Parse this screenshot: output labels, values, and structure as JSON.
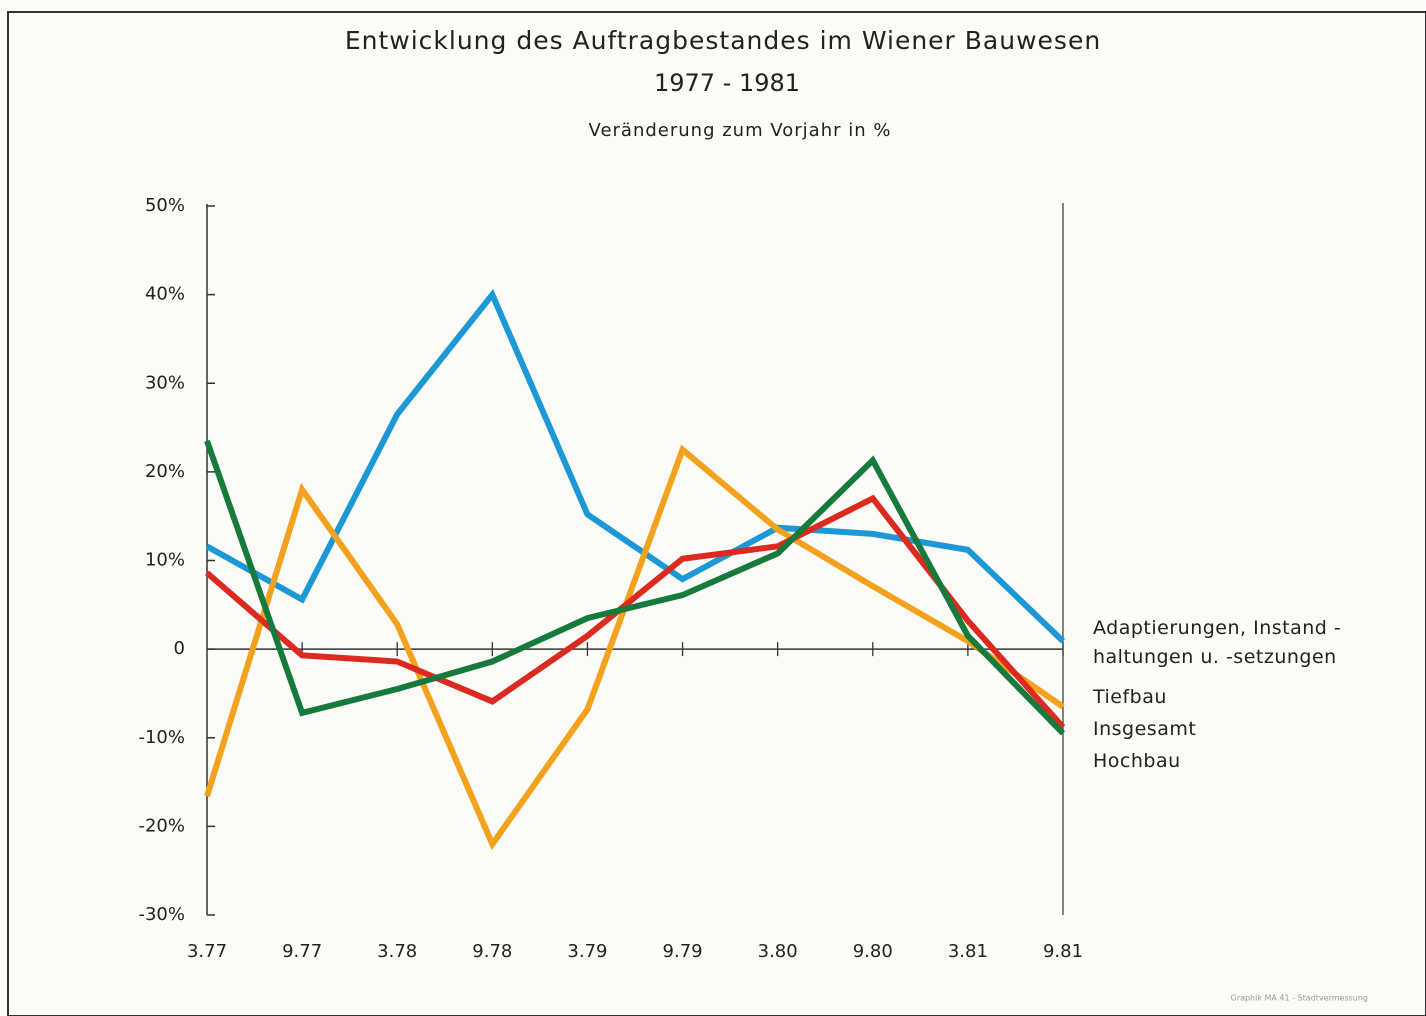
{
  "chart_data": {
    "type": "line",
    "title": "Entwicklung des Auftragbestandes im Wiener Bauwesen",
    "subtitle": "1977 - 1981",
    "y_label": "Veränderung zum Vorjahr in %",
    "credit": "Graphik MA 41 - Stadtvermessung",
    "categories": [
      "3.77",
      "9.77",
      "3.78",
      "9.78",
      "3.79",
      "9.79",
      "3.80",
      "9.80",
      "3.81",
      "9.81"
    ],
    "series": [
      {
        "name": "Adaptierungen, Instand - haltungen u. -setzungen",
        "color": "#1b98d5",
        "values": [
          11.6,
          5.6,
          26.5,
          40,
          15.2,
          7.9,
          13.7,
          13,
          11.2,
          0.9
        ]
      },
      {
        "name": "Tiefbau",
        "color": "#f4a11e",
        "values": [
          -16.6,
          18,
          2.8,
          -22,
          -6.8,
          22.5,
          13.5,
          7.1,
          0.9,
          -6.5
        ]
      },
      {
        "name": "Insgesamt",
        "color": "#dd2a20",
        "values": [
          8.6,
          -0.7,
          -1.4,
          -5.9,
          1.5,
          10.2,
          11.6,
          17,
          3.2,
          -8.8
        ]
      },
      {
        "name": "Hochbau",
        "color": "#167a3c",
        "values": [
          23.5,
          -7.2,
          -4.5,
          -1.4,
          3.5,
          6.1,
          10.8,
          21.3,
          1.5,
          -9.5
        ]
      }
    ],
    "ylim": [
      -30,
      50
    ],
    "yticks": [
      {
        "value": -30,
        "label": "-30%"
      },
      {
        "value": -20,
        "label": "-20%"
      },
      {
        "value": -10,
        "label": "-10%"
      },
      0,
      {
        "value": 10,
        "label": "10%"
      },
      {
        "value": 20,
        "label": "20%"
      },
      {
        "value": 30,
        "label": "30%"
      },
      {
        "value": 40,
        "label": "40%"
      },
      {
        "value": 50,
        "label": "50%"
      }
    ]
  }
}
